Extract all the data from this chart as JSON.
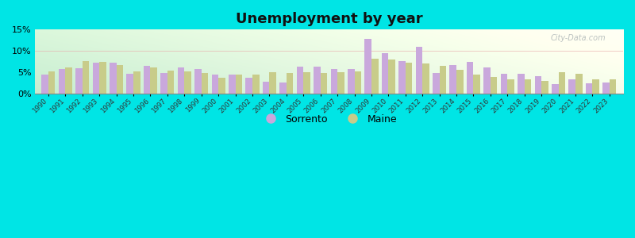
{
  "title": "Unemployment by year",
  "years": [
    1990,
    1991,
    1992,
    1993,
    1994,
    1995,
    1996,
    1997,
    1998,
    1999,
    2000,
    2001,
    2002,
    2003,
    2004,
    2005,
    2006,
    2007,
    2008,
    2009,
    2010,
    2011,
    2012,
    2013,
    2014,
    2015,
    2016,
    2017,
    2018,
    2019,
    2020,
    2021,
    2022,
    2023
  ],
  "sorrento": [
    4.5,
    5.8,
    6.0,
    7.2,
    7.2,
    4.6,
    6.5,
    4.8,
    6.2,
    5.8,
    4.5,
    4.5,
    3.8,
    2.8,
    2.7,
    6.3,
    6.4,
    5.8,
    5.8,
    12.8,
    9.5,
    7.6,
    11.0,
    4.8,
    6.7,
    7.5,
    6.2,
    4.7,
    4.7,
    4.1,
    2.2,
    3.3,
    2.4,
    2.7
  ],
  "maine": [
    5.2,
    6.2,
    7.6,
    7.5,
    6.7,
    5.3,
    6.1,
    5.4,
    5.3,
    4.8,
    3.8,
    4.4,
    4.4,
    5.1,
    4.8,
    5.0,
    4.8,
    5.0,
    5.3,
    8.1,
    8.0,
    7.3,
    7.1,
    6.5,
    5.6,
    4.4,
    3.9,
    3.4,
    3.4,
    2.9,
    5.0,
    4.6,
    3.3,
    3.3
  ],
  "sorrento_color": "#c9a8dc",
  "maine_color": "#c8cc8a",
  "outer_bg": "#00e5e5",
  "ylim": [
    0,
    15
  ],
  "yticks": [
    0,
    5,
    10,
    15
  ],
  "ytick_labels": [
    "0%",
    "5%",
    "10%",
    "15%"
  ],
  "bar_width": 0.4,
  "title_fontsize": 13,
  "bg_left_color": "#b8e8c8",
  "bg_right_color": "#f0f8e8",
  "bg_top_color": "#e0f0e0",
  "watermark": "City-Data.com"
}
